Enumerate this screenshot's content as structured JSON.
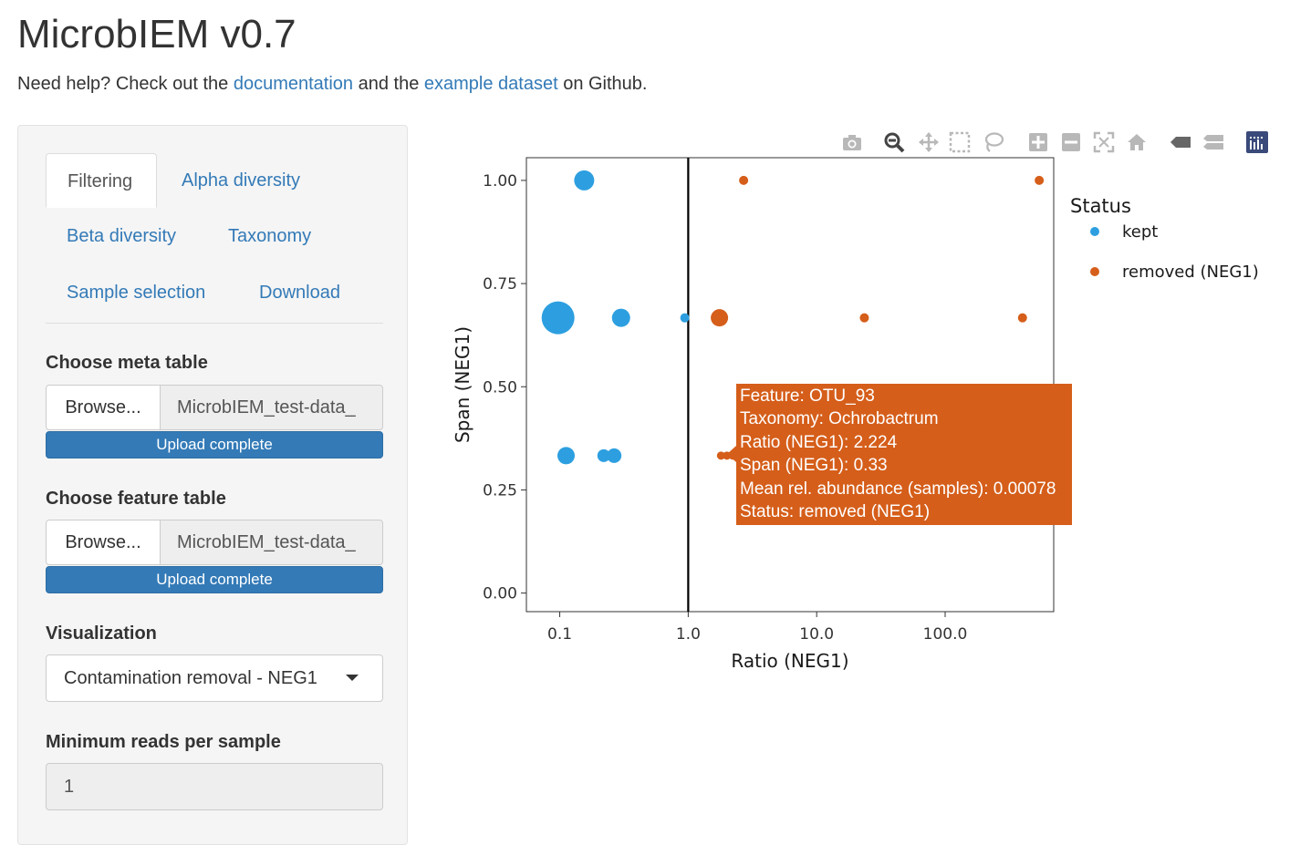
{
  "app": {
    "title": "MicrobIEM v0.7"
  },
  "help": {
    "prefix": "Need help? Check out the ",
    "doc_link": "documentation",
    "middle": " and the ",
    "example_link": "example dataset",
    "suffix": " on Github."
  },
  "tabs": [
    {
      "label": "Filtering"
    },
    {
      "label": "Alpha diversity"
    },
    {
      "label": "Beta diversity"
    },
    {
      "label": "Taxonomy"
    },
    {
      "label": "Sample selection"
    },
    {
      "label": "Download"
    }
  ],
  "meta_table": {
    "label": "Choose meta table",
    "browse": "Browse...",
    "file": "MicrobIEM_test-data_",
    "status": "Upload complete"
  },
  "feature_table": {
    "label": "Choose feature table",
    "browse": "Browse...",
    "file": "MicrobIEM_test-data_",
    "status": "Upload complete"
  },
  "visualization": {
    "label": "Visualization",
    "selected": "Contamination removal - NEG1"
  },
  "min_reads": {
    "label": "Minimum reads per sample",
    "value": "1"
  },
  "modebar": [
    "camera-icon",
    "zoom-icon",
    "pan-icon",
    "box-select-icon",
    "lasso-select-icon",
    "zoom-in-icon",
    "zoom-out-icon",
    "autoscale-icon",
    "reset-axes-icon",
    "hover-closest-icon",
    "hover-compare-icon",
    "plotly-logo-icon"
  ],
  "chart_data": {
    "type": "scatter",
    "xlabel": "Ratio (NEG1)",
    "ylabel": "Span (NEG1)",
    "x_scale": "log",
    "x_ticks": [
      0.1,
      1,
      10,
      100
    ],
    "x_tick_labels": [
      "0.1",
      "1.0",
      "10.0",
      "100.0"
    ],
    "y_ticks": [
      0,
      0.25,
      0.5,
      0.75,
      1
    ],
    "y_tick_labels": [
      "0.00",
      "0.25",
      "0.50",
      "0.75",
      "1.00"
    ],
    "xlim": [
      0.055,
      700
    ],
    "ylim": [
      -0.045,
      1.055
    ],
    "vline_x": 1,
    "legend": {
      "title": "Status",
      "placement": "right"
    },
    "series": [
      {
        "name": "kept",
        "color": "#2d9fe0",
        "points": [
          {
            "x": 0.155,
            "y": 1.0,
            "size": 11
          },
          {
            "x": 0.097,
            "y": 0.667,
            "size": 18
          },
          {
            "x": 0.3,
            "y": 0.667,
            "size": 10
          },
          {
            "x": 0.94,
            "y": 0.667,
            "size": 5
          },
          {
            "x": 0.112,
            "y": 0.333,
            "size": 9.5
          },
          {
            "x": 0.22,
            "y": 0.333,
            "size": 7
          },
          {
            "x": 0.265,
            "y": 0.333,
            "size": 8
          }
        ]
      },
      {
        "name": "removed (NEG1)",
        "color": "#d55e1a",
        "points": [
          {
            "x": 2.7,
            "y": 1.0,
            "size": 5
          },
          {
            "x": 540,
            "y": 1.0,
            "size": 5
          },
          {
            "x": 1.75,
            "y": 0.667,
            "size": 9.5
          },
          {
            "x": 23.5,
            "y": 0.667,
            "size": 5
          },
          {
            "x": 400,
            "y": 0.667,
            "size": 5
          },
          {
            "x": 1.8,
            "y": 0.333,
            "size": 4.5
          },
          {
            "x": 2.0,
            "y": 0.333,
            "size": 4.5
          },
          {
            "x": 2.224,
            "y": 0.333,
            "size": 4.5
          }
        ]
      }
    ]
  },
  "tooltip": {
    "lines": [
      "Feature: OTU_93",
      "Taxonomy: Ochrobactrum",
      "Ratio (NEG1): 2.224",
      "Span (NEG1): 0.33",
      "Mean rel. abundance (samples): 0.00078",
      "Status: removed (NEG1)"
    ]
  }
}
